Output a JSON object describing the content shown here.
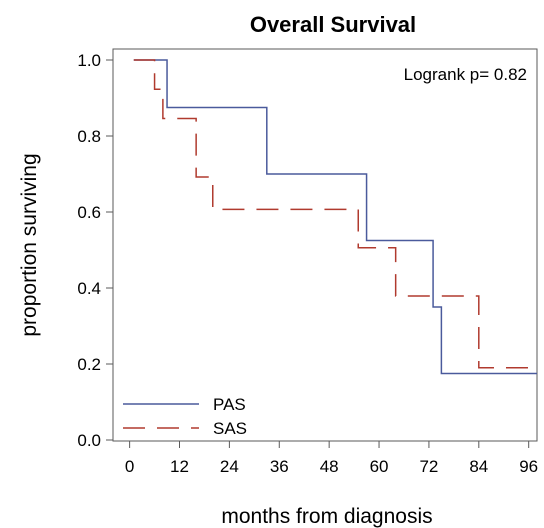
{
  "chart_data": {
    "type": "line",
    "step": true,
    "title": "Overall Survival",
    "xlabel": "months from diagnosis",
    "ylabel": "proportion surviving",
    "xlim": [
      -4,
      98
    ],
    "ylim": [
      0,
      1.0
    ],
    "xticks": [
      0,
      12,
      24,
      36,
      48,
      60,
      72,
      84,
      96
    ],
    "yticks": [
      "0.0",
      "0.2",
      "0.4",
      "0.6",
      "0.8",
      "1.0"
    ],
    "annotation": "Logrank p=  0.82",
    "legend_position": "bottom-left",
    "series": [
      {
        "name": "PAS",
        "color": "#4a5a9c",
        "dash": "solid",
        "steps": [
          [
            1,
            1.0
          ],
          [
            9,
            0.875
          ],
          [
            33,
            0.7
          ],
          [
            57,
            0.525
          ],
          [
            73,
            0.35
          ],
          [
            75,
            0.175
          ],
          [
            98,
            0.175
          ]
        ]
      },
      {
        "name": "SAS",
        "color": "#b03a2e",
        "dash": "dashed",
        "steps": [
          [
            1,
            1.0
          ],
          [
            6,
            0.923
          ],
          [
            8,
            0.846
          ],
          [
            16,
            0.692
          ],
          [
            20,
            0.607
          ],
          [
            55,
            0.506
          ],
          [
            64,
            0.379
          ],
          [
            84,
            0.19
          ],
          [
            98,
            0.19
          ]
        ]
      }
    ]
  }
}
